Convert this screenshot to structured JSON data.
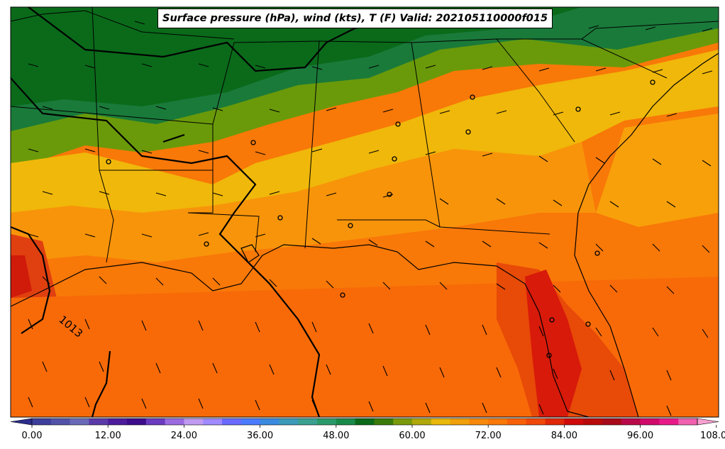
{
  "title": "Surface pressure (hPa), wind (kts), T (F) Valid: 202105110000f015",
  "isobar_label": "1013",
  "colorbar": {
    "ticks": [
      "0.00",
      "12.00",
      "24.00",
      "36.00",
      "48.00",
      "60.00",
      "72.00",
      "84.00",
      "96.00",
      "108.00"
    ],
    "colors": [
      "#2c2c8c",
      "#3e3e9c",
      "#5252a8",
      "#6a6ab8",
      "#5a3aa8",
      "#4c1c9c",
      "#3c0c8c",
      "#6a3ac0",
      "#9a6ae0",
      "#c09af0",
      "#a08aff",
      "#6a6aff",
      "#4a7aff",
      "#3a8ae0",
      "#3a9ab8",
      "#3aa090",
      "#2a9a6a",
      "#1a8a4a",
      "#0a6a1a",
      "#3a7a0a",
      "#7a9a0a",
      "#b0a80a",
      "#e8b80a",
      "#f0a00a",
      "#f8880a",
      "#f87808",
      "#f86008",
      "#f04808",
      "#e02808",
      "#d00a0a",
      "#b80a0a",
      "#a80a1a",
      "#b80a4a",
      "#d00a6a",
      "#e81a8a",
      "#f060b0",
      "#f8a0d0"
    ]
  }
}
